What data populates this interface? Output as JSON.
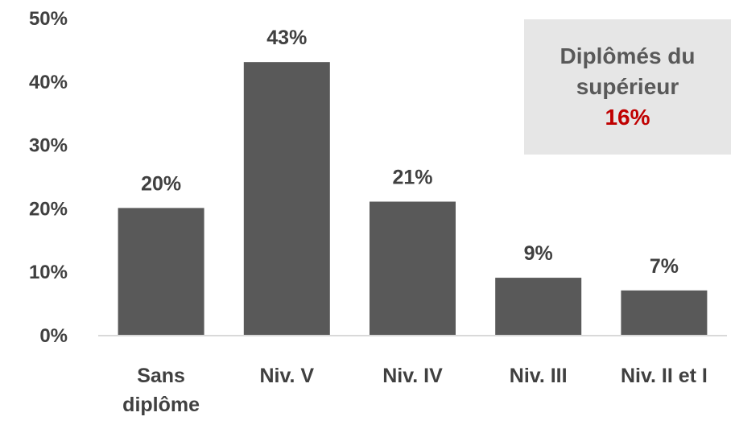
{
  "chart_data": {
    "type": "bar",
    "title": "",
    "xlabel": "",
    "ylabel": "",
    "categories": [
      [
        "Sans",
        "diplôme"
      ],
      [
        "Niv. V"
      ],
      [
        "Niv. IV"
      ],
      [
        "Niv. III"
      ],
      [
        "Niv. II et I"
      ]
    ],
    "values": [
      20,
      43,
      21,
      9,
      7
    ],
    "data_labels": [
      "20%",
      "43%",
      "21%",
      "9%",
      "7%"
    ],
    "ylim": [
      0,
      50
    ],
    "yticks": [
      0,
      10,
      20,
      30,
      40,
      50
    ],
    "ytick_labels": [
      "0%",
      "10%",
      "20%",
      "30%",
      "40%",
      "50%"
    ],
    "grid": false,
    "bar_color": "#595959",
    "annotation": {
      "line1": "Diplômés du",
      "line2": "supérieur",
      "value": "16%",
      "value_color": "#c00000",
      "background": "#e6e6e6"
    }
  }
}
